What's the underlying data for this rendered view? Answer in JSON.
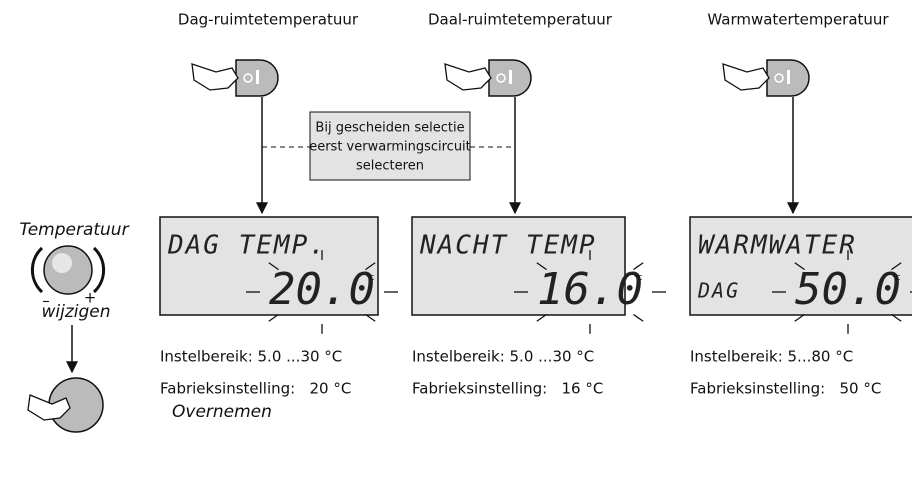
{
  "note": [
    "Bij gescheiden selectie",
    "eerst verwarmingscircuit",
    "selecteren"
  ],
  "left": {
    "temperature": "Temperatuur",
    "change": "wijzigen",
    "minus": "–",
    "plus": "+",
    "accept": "Overnemen"
  },
  "columns": [
    {
      "title": "Dag-ruimtetemperatuur",
      "display_line": "DAG TEMP.",
      "display_sub": null,
      "display_value": "20.0",
      "unit": "°C",
      "range": "Instelbereik: 5.0 ...30 °C",
      "factory": "Fabrieksinstelling:   20 °C"
    },
    {
      "title": "Daal-ruimtetemperatuur",
      "display_line": "NACHT TEMP",
      "display_sub": null,
      "display_value": "16.0",
      "unit": "°C",
      "range": "Instelbereik: 5.0 ...30 °C",
      "factory": "Fabrieksinstelling:   16 °C"
    },
    {
      "title": "Warmwatertemperatuur",
      "display_line": "WARMWATER",
      "display_sub": "DAG",
      "display_value": "50.0",
      "unit": "°C",
      "range": "Instelbereik: 5...80 °C",
      "factory": "Fabrieksinstelling:   50 °C"
    }
  ]
}
